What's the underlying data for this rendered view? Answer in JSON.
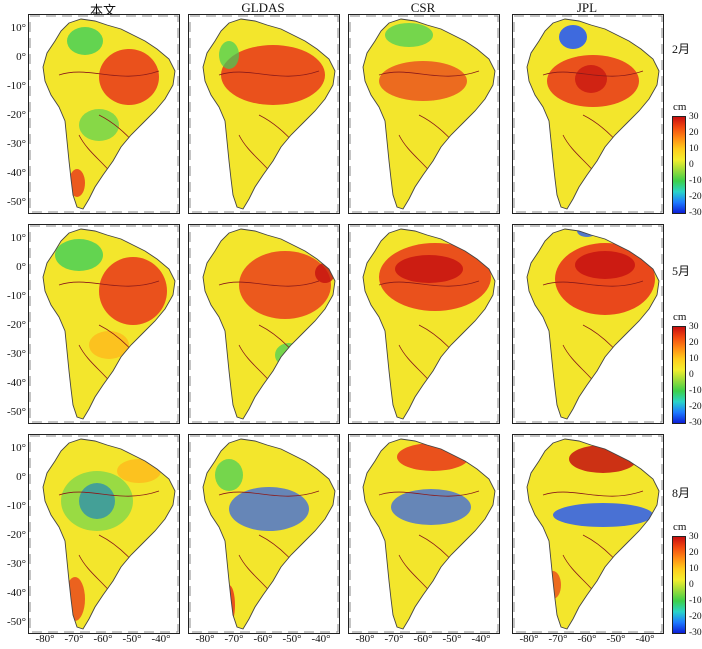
{
  "columns": [
    "本文",
    "GLDAS",
    "CSR",
    "JPL"
  ],
  "rows": [
    "2月",
    "5月",
    "8月"
  ],
  "y_ticks": [
    "10°",
    "0°",
    "-10°",
    "-20°",
    "-30°",
    "-40°",
    "-50°"
  ],
  "x_ticks": [
    "-80°",
    "-70°",
    "-60°",
    "-50°",
    "-40°"
  ],
  "colorbar": {
    "unit": "cm",
    "ticks": [
      "30",
      "20",
      "10",
      "0",
      "-10",
      "-20",
      "-30"
    ],
    "range": [
      -30,
      30
    ],
    "colors": [
      "#0b1fd6",
      "#1e7bff",
      "#2ad4c8",
      "#3ccf4a",
      "#9bdc3a",
      "#f4ee2e",
      "#ffcc1c",
      "#ff8c14",
      "#f24a10",
      "#c80f0f"
    ]
  },
  "map_colors": {
    "land_base": "#f3e62c",
    "wet": "#e8361a",
    "very_wet": "#c41010",
    "dry": "#2a5cf2",
    "green": "#3fcf5a",
    "river": "#8b1a1a",
    "border": "#444444",
    "ocean": "#ffffff"
  }
}
